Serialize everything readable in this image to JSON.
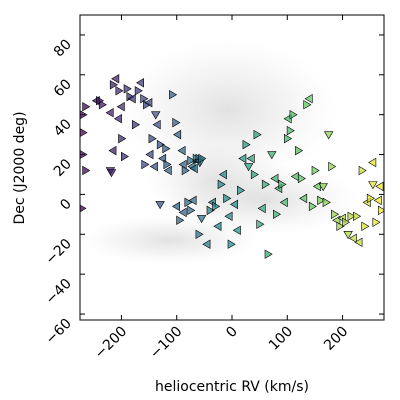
{
  "chart_data": {
    "type": "scatter",
    "xlabel": "heliocentric RV (km/s)",
    "ylabel": "Dec (J2000 deg)",
    "xlim": [
      -275,
      275
    ],
    "ylim": [
      -63,
      90
    ],
    "xticks": [
      -200,
      -100,
      0,
      100,
      200
    ],
    "xtick_labels": [
      "−200",
      "−100",
      "0",
      "100",
      "200"
    ],
    "yticks": [
      -60,
      -40,
      -20,
      0,
      20,
      40,
      60,
      80
    ],
    "ytick_labels": [
      "−60",
      "−40",
      "−20",
      "0",
      "20",
      "40",
      "60",
      "80"
    ],
    "marker": "triangle",
    "colormap": "viridis, mapped to heliocentric RV",
    "background": "grey density cloud, centered near RV 0, Dec 20–60",
    "points": [
      [
        -270,
        40,
        "right"
      ],
      [
        -265,
        44,
        "right"
      ],
      [
        -270,
        31,
        "right"
      ],
      [
        -270,
        20,
        "right"
      ],
      [
        -265,
        12,
        "right"
      ],
      [
        -272,
        -7,
        "right"
      ],
      [
        -245,
        47,
        "left"
      ],
      [
        -235,
        45,
        "right"
      ],
      [
        -240,
        47,
        "right"
      ],
      [
        -220,
        41,
        "left"
      ],
      [
        -215,
        55,
        "right"
      ],
      [
        -210,
        58,
        "left"
      ],
      [
        -205,
        52,
        "right"
      ],
      [
        -200,
        44,
        "left"
      ],
      [
        -205,
        38,
        "left"
      ],
      [
        -200,
        28,
        "right"
      ],
      [
        -195,
        19,
        "right"
      ],
      [
        -190,
        53,
        "right"
      ],
      [
        -185,
        49,
        "right"
      ],
      [
        -180,
        48,
        "left"
      ],
      [
        -215,
        22,
        "left"
      ],
      [
        -220,
        12,
        "down"
      ],
      [
        -218,
        11,
        "down"
      ],
      [
        -175,
        35,
        "right"
      ],
      [
        -170,
        52,
        "right"
      ],
      [
        -165,
        56,
        "left"
      ],
      [
        -160,
        48,
        "right"
      ],
      [
        -158,
        15,
        "right"
      ],
      [
        -155,
        45,
        "right"
      ],
      [
        -150,
        46,
        "left"
      ],
      [
        -145,
        28,
        "right"
      ],
      [
        -148,
        20,
        "left"
      ],
      [
        -140,
        14,
        "left"
      ],
      [
        -138,
        40,
        "down"
      ],
      [
        -135,
        35,
        "left"
      ],
      [
        -130,
        25,
        "right"
      ],
      [
        -125,
        18,
        "left"
      ],
      [
        -120,
        23,
        "right"
      ],
      [
        -118,
        15,
        "right"
      ],
      [
        -115,
        12,
        "left"
      ],
      [
        -108,
        50,
        "right"
      ],
      [
        -102,
        36,
        "right"
      ],
      [
        -98,
        30,
        "left"
      ],
      [
        -90,
        22,
        "left"
      ],
      [
        -88,
        15,
        "left"
      ],
      [
        -85,
        12,
        "right"
      ],
      [
        -75,
        17,
        "right"
      ],
      [
        -72,
        14,
        "left"
      ],
      [
        -68,
        13,
        "left"
      ],
      [
        -65,
        18,
        "right"
      ],
      [
        -62,
        17,
        "left"
      ],
      [
        -60,
        18,
        "right"
      ],
      [
        -58,
        16,
        "down"
      ],
      [
        -55,
        18,
        "right"
      ],
      [
        -130,
        -5,
        "down"
      ],
      [
        -100,
        -6,
        "left"
      ],
      [
        -95,
        -13,
        "right"
      ],
      [
        -88,
        -9,
        "left"
      ],
      [
        -80,
        -4,
        "right"
      ],
      [
        -75,
        -8,
        "right"
      ],
      [
        -70,
        -3,
        "left"
      ],
      [
        -60,
        -20,
        "right"
      ],
      [
        -55,
        -12,
        "down"
      ],
      [
        -45,
        -25,
        "left"
      ],
      [
        -40,
        -8,
        "right"
      ],
      [
        -35,
        -4,
        "left"
      ],
      [
        -30,
        -6,
        "right"
      ],
      [
        -25,
        -16,
        "left"
      ],
      [
        -20,
        5,
        "right"
      ],
      [
        -15,
        10,
        "left"
      ],
      [
        -10,
        -2,
        "right"
      ],
      [
        -5,
        -11,
        "left"
      ],
      [
        -2,
        -25,
        "right"
      ],
      [
        5,
        -5,
        "left"
      ],
      [
        10,
        -18,
        "left"
      ],
      [
        15,
        2,
        "right"
      ],
      [
        20,
        18,
        "left"
      ],
      [
        25,
        25,
        "right"
      ],
      [
        30,
        14,
        "down"
      ],
      [
        35,
        18,
        "left"
      ],
      [
        40,
        10,
        "right"
      ],
      [
        45,
        30,
        "right"
      ],
      [
        50,
        -15,
        "right"
      ],
      [
        55,
        -7,
        "left"
      ],
      [
        60,
        5,
        "right"
      ],
      [
        65,
        -30,
        "right"
      ],
      [
        72,
        20,
        "down"
      ],
      [
        78,
        8,
        "left"
      ],
      [
        80,
        -10,
        "right"
      ],
      [
        85,
        3,
        "left"
      ],
      [
        90,
        5,
        "right"
      ],
      [
        95,
        -4,
        "left"
      ],
      [
        100,
        28,
        "right"
      ],
      [
        102,
        38,
        "left"
      ],
      [
        105,
        32,
        "right"
      ],
      [
        110,
        40,
        "right"
      ],
      [
        115,
        9,
        "left"
      ],
      [
        120,
        22,
        "right"
      ],
      [
        125,
        8,
        "right"
      ],
      [
        130,
        -2,
        "left"
      ],
      [
        135,
        45,
        "right"
      ],
      [
        140,
        48,
        "left"
      ],
      [
        145,
        -6,
        "right"
      ],
      [
        150,
        12,
        "right"
      ],
      [
        155,
        4,
        "left"
      ],
      [
        160,
        -3,
        "right"
      ],
      [
        165,
        4,
        "down"
      ],
      [
        170,
        -4,
        "right"
      ],
      [
        175,
        30,
        "down"
      ],
      [
        180,
        14,
        "right"
      ],
      [
        185,
        -10,
        "right"
      ],
      [
        190,
        -13,
        "left"
      ],
      [
        195,
        -16,
        "right"
      ],
      [
        200,
        -12,
        "left"
      ],
      [
        205,
        -14,
        "right"
      ],
      [
        210,
        -20,
        "down"
      ],
      [
        215,
        -11,
        "right"
      ],
      [
        220,
        -22,
        "left"
      ],
      [
        225,
        -11,
        "right"
      ],
      [
        230,
        -24,
        "left"
      ],
      [
        240,
        -16,
        "right"
      ],
      [
        245,
        -4,
        "left"
      ],
      [
        250,
        -2,
        "right"
      ],
      [
        255,
        5,
        "down"
      ],
      [
        260,
        -14,
        "right"
      ],
      [
        265,
        -3,
        "left"
      ],
      [
        270,
        -8,
        "right"
      ],
      [
        268,
        4,
        "left"
      ],
      [
        255,
        16,
        "left"
      ],
      [
        235,
        12,
        "right"
      ]
    ]
  }
}
